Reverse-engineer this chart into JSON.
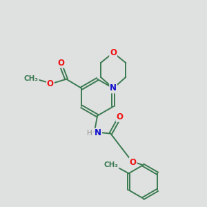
{
  "bg_color": "#dfe0e0",
  "bond_color": "#3a7a50",
  "atom_colors": {
    "O": "#ee1111",
    "N": "#1111cc",
    "H": "#888888",
    "C": "#3a7a50"
  },
  "bond_width": 1.4,
  "font_size_atom": 8.5,
  "figsize": [
    3.0,
    3.0
  ],
  "dpi": 100
}
